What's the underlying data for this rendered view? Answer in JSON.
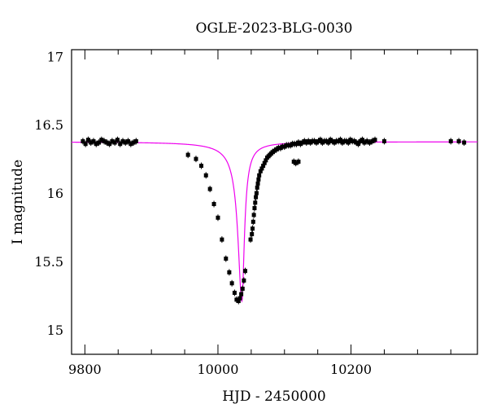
{
  "chart_data": {
    "type": "scatter",
    "title": "OGLE-2023-BLG-0030",
    "xlabel": "HJD - 2450000",
    "ylabel": "I magnitude",
    "xlim": [
      9780,
      10390
    ],
    "ylim": [
      17.05,
      14.82
    ],
    "y_inverted": true,
    "x_ticks": [
      9800,
      10000,
      10200
    ],
    "x_tick_labels": [
      "9800",
      "10000",
      "10200"
    ],
    "y_ticks": [
      15,
      15.5,
      16,
      16.5,
      17
    ],
    "y_tick_labels": [
      "15",
      "15.5",
      "16",
      "16.5",
      "17"
    ],
    "grid": false,
    "series": [
      {
        "kind": "points",
        "color": "#000000",
        "x": [
          9797,
          9801,
          9805,
          9809,
          9813,
          9817,
          9821,
          9825,
          9829,
          9833,
          9837,
          9841,
          9845,
          9849,
          9853,
          9857,
          9861,
          9865,
          9869,
          9873,
          9877,
          9955,
          9967,
          9975,
          9982,
          9988,
          9994,
          10000,
          10006,
          10012,
          10017,
          10021,
          10025,
          10028,
          10031,
          10033,
          10035,
          10037,
          10039,
          10041,
          10049,
          10051,
          10052,
          10053,
          10054,
          10055,
          10056,
          10057,
          10058,
          10059,
          10060,
          10061,
          10062,
          10064,
          10066,
          10068,
          10070,
          10072,
          10074,
          10076,
          10078,
          10080,
          10082,
          10085,
          10088,
          10091,
          10094,
          10097,
          10100,
          10103,
          10106,
          10109,
          10112,
          10115,
          10118,
          10121,
          10124,
          10127,
          10130,
          10133,
          10136,
          10139,
          10142,
          10145,
          10148,
          10151,
          10154,
          10157,
          10160,
          10163,
          10166,
          10169,
          10172,
          10175,
          10178,
          10181,
          10184,
          10187,
          10190,
          10193,
          10196,
          10199,
          10202,
          10205,
          10208,
          10211,
          10214,
          10217,
          10220,
          10224,
          10228,
          10232,
          10236,
          10250,
          10114,
          10117,
          10121,
          10350,
          10362,
          10370
        ],
        "y": [
          16.38,
          16.36,
          16.39,
          16.37,
          16.38,
          16.36,
          16.37,
          16.39,
          16.38,
          16.37,
          16.36,
          16.38,
          16.37,
          16.39,
          16.36,
          16.38,
          16.37,
          16.38,
          16.36,
          16.37,
          16.38,
          16.28,
          16.25,
          16.2,
          16.13,
          16.03,
          15.92,
          15.82,
          15.66,
          15.52,
          15.42,
          15.34,
          15.27,
          15.22,
          15.21,
          15.23,
          15.26,
          15.3,
          15.36,
          15.43,
          15.66,
          15.7,
          15.74,
          15.79,
          15.84,
          15.89,
          15.93,
          15.97,
          16.0,
          16.04,
          16.07,
          16.1,
          16.13,
          16.16,
          16.18,
          16.2,
          16.22,
          16.24,
          16.26,
          16.27,
          16.28,
          16.29,
          16.3,
          16.31,
          16.32,
          16.33,
          16.33,
          16.34,
          16.34,
          16.35,
          16.35,
          16.35,
          16.36,
          16.36,
          16.36,
          16.37,
          16.36,
          16.37,
          16.38,
          16.37,
          16.38,
          16.37,
          16.38,
          16.38,
          16.37,
          16.38,
          16.39,
          16.37,
          16.38,
          16.38,
          16.37,
          16.39,
          16.38,
          16.37,
          16.38,
          16.38,
          16.39,
          16.37,
          16.38,
          16.38,
          16.37,
          16.39,
          16.38,
          16.38,
          16.37,
          16.36,
          16.38,
          16.39,
          16.37,
          16.38,
          16.37,
          16.38,
          16.39,
          16.38,
          16.23,
          16.22,
          16.23,
          16.38,
          16.38,
          16.37
        ]
      },
      {
        "kind": "model",
        "color": "#ee00ee",
        "peak_x": 10036,
        "baseline_mag": 16.376,
        "peak_mag": 15.21
      }
    ]
  }
}
